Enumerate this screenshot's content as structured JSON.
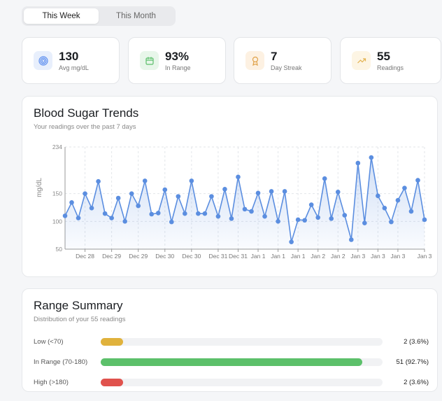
{
  "tabs": [
    {
      "label": "This Week",
      "active": true
    },
    {
      "label": "This Month",
      "active": false
    }
  ],
  "stats": [
    {
      "value": "130",
      "label": "Avg mg/dL",
      "icon": "target-icon",
      "color": "#5b8def",
      "bg": "#e8effc"
    },
    {
      "value": "93%",
      "label": "In Range",
      "icon": "calendar-icon",
      "color": "#5cbf6b",
      "bg": "#e8f6ea"
    },
    {
      "value": "7",
      "label": "Day Streak",
      "icon": "award-icon",
      "color": "#e0a24a",
      "bg": "#fdf1e2"
    },
    {
      "value": "55",
      "label": "Readings",
      "icon": "trending-up-icon",
      "color": "#e3b24f",
      "bg": "#fdf5e4"
    }
  ],
  "trends": {
    "title": "Blood Sugar Trends",
    "subtitle": "Your readings over the past 7 days"
  },
  "chart_data": {
    "type": "area",
    "ylabel": "mg/dL",
    "ylim": [
      50,
      234
    ],
    "y_ticks": [
      50,
      100,
      150,
      234
    ],
    "grid": true,
    "color": "#5b8ee0",
    "values": [
      110,
      134,
      106,
      150,
      124,
      172,
      114,
      106,
      142,
      100,
      150,
      128,
      173,
      113,
      115,
      157,
      99,
      145,
      114,
      173,
      114,
      114,
      145,
      109,
      158,
      105,
      180,
      122,
      118,
      151,
      109,
      154,
      100,
      154,
      63,
      103,
      102,
      130,
      107,
      177,
      105,
      153,
      111,
      67,
      205,
      97,
      215,
      146,
      124,
      99,
      138,
      160,
      118,
      174,
      103
    ],
    "x_ticks": [
      {
        "index": 3,
        "label": "Dec 28"
      },
      {
        "index": 7,
        "label": "Dec 29"
      },
      {
        "index": 11,
        "label": "Dec 29"
      },
      {
        "index": 15,
        "label": "Dec 30"
      },
      {
        "index": 19,
        "label": "Dec 30"
      },
      {
        "index": 23,
        "label": "Dec 31"
      },
      {
        "index": 26,
        "label": "Dec 31"
      },
      {
        "index": 29,
        "label": "Jan 1"
      },
      {
        "index": 32,
        "label": "Jan 1"
      },
      {
        "index": 35,
        "label": "Jan 1"
      },
      {
        "index": 38,
        "label": "Jan 2"
      },
      {
        "index": 41,
        "label": "Jan 2"
      },
      {
        "index": 44,
        "label": "Jan 3"
      },
      {
        "index": 47,
        "label": "Jan 3"
      },
      {
        "index": 50,
        "label": "Jan 3"
      },
      {
        "index": 54,
        "label": "Jan 3"
      }
    ]
  },
  "range": {
    "title": "Range Summary",
    "subtitle": "Distribution of your 55 readings",
    "rows": [
      {
        "label": "Low (<70)",
        "value": "2 (3.6%)",
        "percent": 3.6,
        "color": "#e0b23c"
      },
      {
        "label": "In Range (70-180)",
        "value": "51 (92.7%)",
        "percent": 92.7,
        "color": "#5cc06a"
      },
      {
        "label": "High (>180)",
        "value": "2 (3.6%)",
        "percent": 3.6,
        "color": "#e0524d"
      }
    ]
  }
}
